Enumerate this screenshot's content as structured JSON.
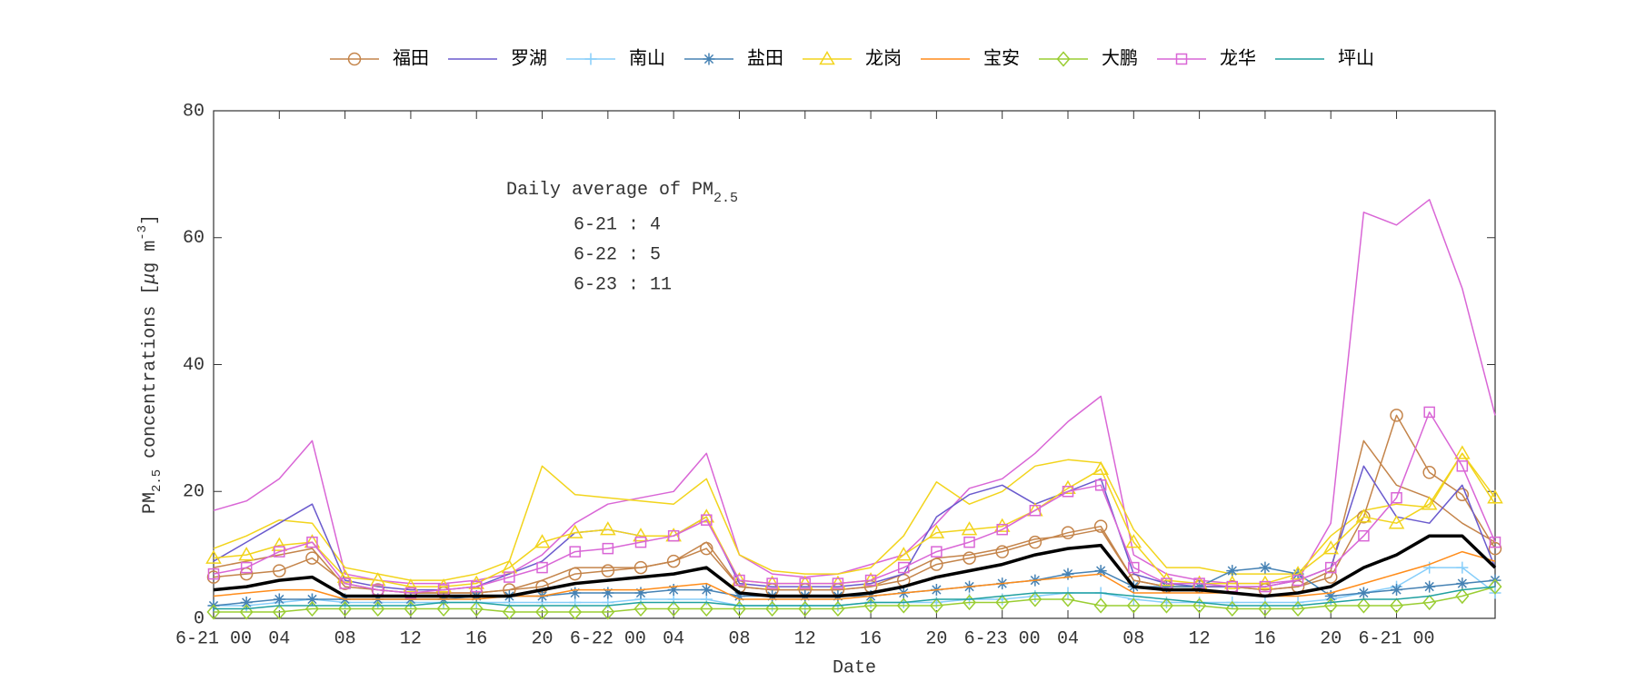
{
  "chart_data": {
    "type": "line",
    "xlabel": "Date",
    "ylabel": [
      "PM",
      "2.5",
      " concentrations [",
      "μ",
      "g m",
      "-3",
      "]"
    ],
    "annotation": {
      "title": "Daily average of PM",
      "sub": "2.5",
      "items": [
        "6-21 : 4",
        "6-22 : 5",
        "6-23 : 11"
      ]
    },
    "xlim": [
      0,
      78
    ],
    "ylim": [
      0,
      80
    ],
    "yticks": [
      0,
      20,
      40,
      60,
      80
    ],
    "xticks": [
      {
        "value": 0,
        "label": "6-21 00"
      },
      {
        "value": 4,
        "label": "04"
      },
      {
        "value": 8,
        "label": "08"
      },
      {
        "value": 12,
        "label": "12"
      },
      {
        "value": 16,
        "label": "16"
      },
      {
        "value": 20,
        "label": "20"
      },
      {
        "value": 24,
        "label": "6-22 00"
      },
      {
        "value": 28,
        "label": "04"
      },
      {
        "value": 32,
        "label": "08"
      },
      {
        "value": 36,
        "label": "12"
      },
      {
        "value": 40,
        "label": "16"
      },
      {
        "value": 44,
        "label": "20"
      },
      {
        "value": 48,
        "label": "6-23 00"
      },
      {
        "value": 52,
        "label": "04"
      },
      {
        "value": 56,
        "label": "08"
      },
      {
        "value": 60,
        "label": "12"
      },
      {
        "value": 64,
        "label": "16"
      },
      {
        "value": 68,
        "label": "20"
      },
      {
        "value": 72,
        "label": "6-21 00"
      }
    ],
    "x": [
      0,
      2,
      4,
      6,
      8,
      10,
      12,
      14,
      16,
      18,
      20,
      22,
      24,
      26,
      28,
      30,
      32,
      34,
      36,
      38,
      40,
      42,
      44,
      46,
      48,
      50,
      52,
      54,
      56,
      58,
      60,
      62,
      64,
      66,
      68,
      70,
      72,
      74,
      76,
      78
    ],
    "series": [
      {
        "color": "#d966d6",
        "width": 1.5,
        "values": [
          17,
          18.5,
          22,
          28,
          7,
          6,
          5.5,
          5.5,
          6,
          7,
          10,
          15,
          18,
          19,
          20,
          26,
          10,
          7,
          6.5,
          7,
          8.5,
          10,
          15,
          20.5,
          22,
          26,
          31,
          35,
          10,
          7,
          6,
          5.5,
          5.5,
          6,
          15,
          64,
          62,
          66,
          52,
          32
        ]
      },
      {
        "color": "#f2d41c",
        "width": 1.5,
        "values": [
          11,
          13,
          15.5,
          15,
          8,
          7,
          6,
          6,
          7,
          9,
          24,
          19.5,
          19,
          18.5,
          18,
          22,
          10,
          7.5,
          7,
          7,
          8,
          13,
          21.5,
          18,
          20,
          24,
          25,
          24.5,
          14,
          8,
          8,
          7,
          7,
          7,
          13,
          17,
          18,
          17.5,
          26,
          18
        ]
      },
      {
        "color": "#c4844a",
        "width": 1.5,
        "values": [
          8,
          9,
          10,
          11,
          5,
          4.5,
          4,
          4,
          4,
          4.5,
          6,
          8,
          8,
          8,
          9,
          12,
          5,
          4.5,
          4.5,
          4.5,
          5,
          7,
          9.5,
          10,
          11,
          12.5,
          13,
          14,
          6,
          5,
          5,
          5,
          4.5,
          5,
          7.5,
          28,
          21,
          19,
          15,
          12
        ]
      },
      {
        "name": "福田",
        "color": "#c4844a",
        "marker": "circle",
        "values": [
          6.5,
          7,
          7.5,
          9.5,
          5.5,
          4.5,
          4,
          4,
          4,
          4.5,
          5,
          7,
          7.5,
          8,
          9,
          11,
          5,
          4.5,
          4.5,
          4.5,
          5,
          6,
          8.5,
          9.5,
          10.5,
          12,
          13.5,
          14.5,
          6,
          5,
          5,
          5,
          4.5,
          5,
          6.5,
          16,
          32,
          23,
          19.5,
          11
        ]
      },
      {
        "name": "罗湖",
        "color": "#6a5acd",
        "marker": "none",
        "values": [
          9,
          12,
          15,
          18,
          6,
          5,
          4.5,
          4.5,
          5,
          7,
          9,
          13.5,
          14,
          13,
          13,
          16,
          5.5,
          5,
          5,
          5,
          5.5,
          7,
          16,
          19.5,
          21,
          18,
          20,
          22,
          7,
          5.5,
          5,
          5,
          5,
          6,
          8,
          24,
          16,
          15,
          21,
          8
        ]
      },
      {
        "name": "南山",
        "color": "#87cefa",
        "marker": "plus",
        "values": [
          2,
          2,
          2.5,
          3,
          2.5,
          2.5,
          2.5,
          2.5,
          2.5,
          2.5,
          2.5,
          2.5,
          2.5,
          3,
          3,
          3,
          2,
          2,
          2,
          2,
          2.5,
          2.5,
          2.5,
          3,
          3,
          3.5,
          4,
          4,
          3,
          2.5,
          2.5,
          2.5,
          2.5,
          2.5,
          3,
          4,
          5,
          8,
          8,
          4
        ]
      },
      {
        "name": "盐田",
        "color": "#4682b4",
        "marker": "star",
        "values": [
          2,
          2.5,
          3,
          3,
          3,
          3,
          3,
          3,
          3.5,
          3.5,
          3.5,
          4,
          4,
          4,
          4.5,
          4.5,
          3.5,
          3.5,
          3.5,
          3.5,
          3.5,
          4,
          4.5,
          5,
          5.5,
          6,
          7,
          7.5,
          5,
          5,
          5,
          7.5,
          8,
          7,
          3.5,
          4,
          4.5,
          5,
          5.5,
          6
        ]
      },
      {
        "name": "龙岗",
        "color": "#f2d41c",
        "marker": "triangle",
        "values": [
          9.5,
          10,
          11.5,
          12,
          6.5,
          6,
          5,
          5,
          5.5,
          8,
          12,
          13.5,
          14,
          13,
          13,
          16,
          6,
          5.5,
          5.5,
          5.5,
          6,
          10,
          13.5,
          14,
          14.5,
          17,
          20.5,
          23.5,
          12,
          6,
          5.5,
          5.5,
          5.5,
          7,
          11,
          16,
          15,
          18,
          26,
          19
        ]
      },
      {
        "name": "宝安",
        "color": "#ff8c1a",
        "marker": "none",
        "values": [
          3.5,
          4,
          4.5,
          4.5,
          3,
          3,
          3,
          3,
          3,
          3.5,
          3.5,
          4.5,
          4.5,
          4.5,
          5,
          5.5,
          3,
          3,
          3,
          3,
          3.5,
          4,
          4.5,
          5,
          5.5,
          6,
          6.5,
          7,
          4,
          4,
          4,
          4,
          3.5,
          3.5,
          4,
          5.5,
          7,
          8.5,
          10.5,
          9
        ]
      },
      {
        "name": "大鹏",
        "color": "#9acd32",
        "marker": "diamond",
        "values": [
          1,
          1,
          1,
          1.5,
          1.5,
          1.5,
          1.5,
          1.5,
          1.5,
          1,
          1,
          1,
          1,
          1.5,
          1.5,
          1.5,
          1.5,
          1.5,
          1.5,
          1.5,
          2,
          2,
          2,
          2.5,
          2.5,
          3,
          3,
          2,
          2,
          2,
          2,
          1.5,
          1.5,
          1.5,
          2,
          2,
          2,
          2.5,
          3.5,
          5
        ]
      },
      {
        "name": "龙华",
        "color": "#d966d6",
        "marker": "square",
        "values": [
          7,
          8,
          10.5,
          12,
          5.5,
          4.5,
          4,
          4.5,
          5,
          6.5,
          8,
          10.5,
          11,
          12,
          13,
          15.5,
          6,
          5.5,
          5.5,
          5.5,
          6,
          8,
          10.5,
          12,
          14,
          17,
          20,
          21,
          8,
          5.5,
          5.5,
          5,
          5,
          6,
          8,
          13,
          19,
          32.5,
          24,
          12
        ]
      },
      {
        "name": "坪山",
        "color": "#20a0a0",
        "marker": "none",
        "values": [
          1.5,
          1.5,
          2,
          2,
          2,
          2,
          2,
          2.5,
          2.5,
          2,
          2,
          2,
          2,
          2.5,
          2.5,
          2.5,
          2,
          2,
          2,
          2,
          2.5,
          2.5,
          3,
          3,
          3.5,
          4,
          4,
          4,
          3.5,
          3,
          2.5,
          2,
          2,
          2,
          2.5,
          3,
          3,
          3.5,
          4.5,
          5
        ]
      },
      {
        "color": "#000000",
        "width": 3.5,
        "values": [
          4.5,
          5,
          6,
          6.5,
          3.5,
          3.5,
          3.5,
          3.5,
          3.5,
          3.5,
          4.5,
          5.5,
          6,
          6.5,
          7,
          8,
          4,
          3.5,
          3.5,
          3.5,
          4,
          5,
          6.5,
          7.5,
          8.5,
          10,
          11,
          11.5,
          5,
          4.5,
          4.5,
          4,
          3.5,
          4,
          5,
          8,
          10,
          13,
          13,
          8
        ]
      }
    ]
  }
}
